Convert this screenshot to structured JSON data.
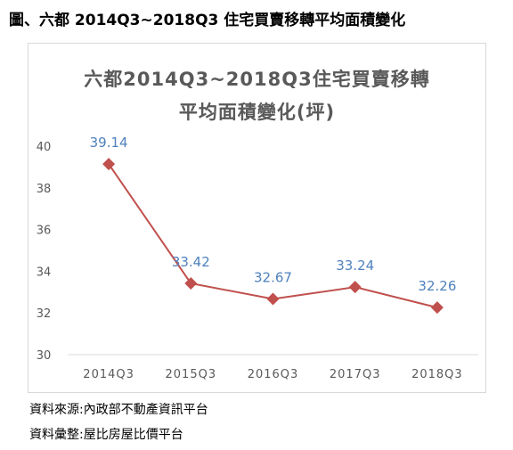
{
  "figure_title": "圖、六都 2014Q3~2018Q3 住宅買賣移轉平均面積變化",
  "sources": [
    "資料來源:內政部不動產資訊平台",
    "資料彙整:屋比房屋比價平台"
  ],
  "colors": {
    "line": "#c0504d",
    "marker": "#c0504d",
    "data_label": "#4f81bd",
    "axis_text": "#595959",
    "title_text": "#595959",
    "axis_line": "#d9d9d9"
  },
  "chart_data": {
    "type": "line",
    "title": "六都2014Q3~2018Q3住宅買賣移轉",
    "subtitle": "平均面積變化(坪)",
    "categories": [
      "2014Q3",
      "2015Q3",
      "2016Q3",
      "2017Q3",
      "2018Q3"
    ],
    "values": [
      39.14,
      33.42,
      32.67,
      33.24,
      32.26
    ],
    "data_labels": [
      "39.14",
      "33.42",
      "32.67",
      "33.24",
      "32.26"
    ],
    "ylim": [
      30,
      40
    ],
    "yticks": [
      30,
      32,
      34,
      36,
      38,
      40
    ],
    "xlabel": "",
    "ylabel": "",
    "grid": false,
    "legend": "none",
    "marker": "diamond"
  }
}
